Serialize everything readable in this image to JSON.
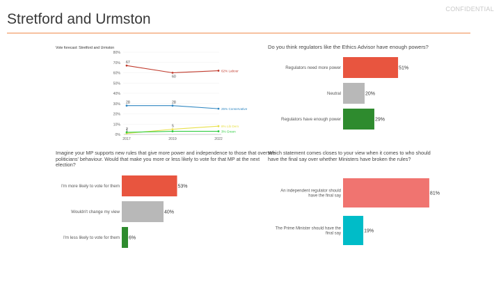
{
  "header": {
    "confidential": "CONFIDENTIAL",
    "title": "Stretford and Urmston"
  },
  "chart_data": [
    {
      "type": "line",
      "title": "Vote forecast: Stretford and Urmston",
      "x": [
        "2017",
        "2019",
        "2022"
      ],
      "ylim": [
        0,
        80
      ],
      "yticks": [
        "0%",
        "10%",
        "20%",
        "30%",
        "40%",
        "50%",
        "60%",
        "70%",
        "80%"
      ],
      "series": [
        {
          "name": "Labour",
          "label": "62% Labour",
          "color": "#c0392b",
          "values": [
            67,
            60,
            62
          ],
          "point_labels": [
            "67",
            "60",
            ""
          ]
        },
        {
          "name": "Conservative",
          "label": "25% Conservative",
          "color": "#2e86c1",
          "values": [
            28,
            28,
            25
          ],
          "point_labels": [
            "28",
            "28",
            ""
          ]
        },
        {
          "name": "Lib Dem",
          "label": "8% Lib Dem",
          "color": "#e8e04a",
          "values": [
            1,
            5,
            8
          ],
          "point_labels": [
            "1",
            "5",
            ""
          ]
        },
        {
          "name": "Green",
          "label": "3% Green",
          "color": "#2ecc40",
          "values": [
            2,
            3,
            3
          ],
          "point_labels": [
            "2",
            "",
            ""
          ]
        }
      ]
    },
    {
      "type": "bar",
      "title": "Do you think regulators like the Ethics Advisor have enough powers?",
      "categories": [
        "Regulators need more power",
        "Neutral",
        "Regulators have enough power"
      ],
      "values": [
        51,
        20,
        29
      ],
      "value_labels": [
        "51%",
        "20%",
        "29%"
      ],
      "colors": [
        "#e8553f",
        "#b8b8b8",
        "#2e8b2e"
      ]
    },
    {
      "type": "bar",
      "title": "Imagine your MP supports new rules that give more power and independence to those that oversee politicians' behaviour. Would that make you more or less likely to vote for that MP at the next election?",
      "categories": [
        "I'm more likely to vote for them",
        "Wouldn't change my view",
        "I'm less likely to vote for them"
      ],
      "values": [
        53,
        40,
        6
      ],
      "value_labels": [
        "53%",
        "40%",
        "6%"
      ],
      "colors": [
        "#e8553f",
        "#b8b8b8",
        "#2e8b2e"
      ]
    },
    {
      "type": "bar",
      "title": "Which statement comes closes to your view when it comes to who should have the final say over whether Ministers have broken the rules?",
      "categories": [
        "An independent regulator should have the final say",
        "The Prime Minister should have the final say"
      ],
      "values": [
        81,
        19
      ],
      "value_labels": [
        "81%",
        "19%"
      ],
      "colors": [
        "#f07470",
        "#00bcc8"
      ]
    }
  ]
}
